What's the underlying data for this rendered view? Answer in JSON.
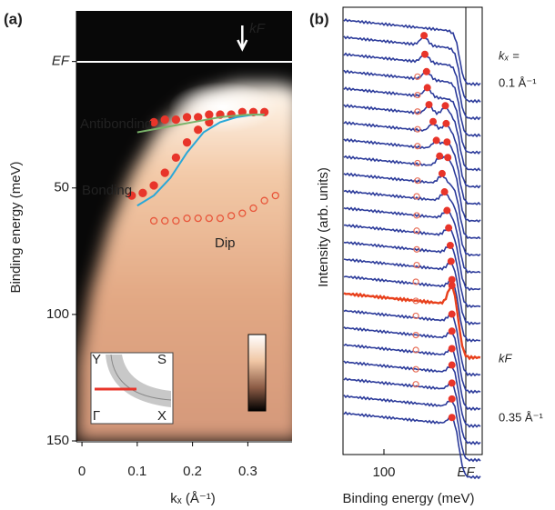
{
  "chart_data": [
    {
      "type": "scatter",
      "title": "(a)",
      "x_label": "kₓ (Å⁻¹)",
      "y_label": "Binding energy (meV)",
      "xlim": [
        -0.01,
        0.38
      ],
      "ylim": [
        -20,
        150
      ],
      "xticks": [
        0,
        0.1,
        0.2,
        0.3
      ],
      "yticks": [
        {
          "value": 0,
          "label": "EF"
        },
        50,
        100,
        150
      ],
      "annotations": [
        {
          "text": "kF",
          "x": 0.29
        }
      ],
      "inset_labels": [
        "Y",
        "S",
        "Γ",
        "X"
      ],
      "series": [
        {
          "name": "Antibonding",
          "marker": "filled",
          "color": "#e8352a",
          "x": [
            0.13,
            0.15,
            0.17,
            0.19,
            0.21,
            0.23,
            0.25,
            0.27,
            0.29,
            0.31,
            0.33
          ],
          "values": [
            24,
            23,
            23,
            22,
            22,
            21,
            21,
            21,
            20,
            20,
            20
          ]
        },
        {
          "name": "Bonding",
          "marker": "filled",
          "color": "#e8352a",
          "x": [
            0.09,
            0.11,
            0.13,
            0.15,
            0.17,
            0.19,
            0.21,
            0.23
          ],
          "values": [
            53,
            52,
            49,
            44,
            38,
            32,
            27,
            24
          ]
        },
        {
          "name": "Dip",
          "marker": "open",
          "color": "#e8553a",
          "x": [
            0.13,
            0.15,
            0.17,
            0.19,
            0.21,
            0.23,
            0.25,
            0.27,
            0.29,
            0.31,
            0.33,
            0.35
          ],
          "values": [
            63,
            63,
            63,
            62,
            62,
            62,
            62,
            61,
            60,
            58,
            55,
            53
          ]
        },
        {
          "marker": "line",
          "color": "#29a8d8",
          "x": [
            0.1,
            0.13,
            0.16,
            0.19,
            0.22,
            0.25,
            0.28,
            0.31,
            0.33
          ],
          "values": [
            57,
            53,
            46,
            36,
            28,
            24,
            22,
            21,
            21
          ]
        },
        {
          "marker": "line",
          "color": "#7ab36a",
          "x": [
            0.1,
            0.15,
            0.2,
            0.25,
            0.3,
            0.33
          ],
          "values": [
            28,
            26,
            24,
            22,
            21,
            21
          ]
        }
      ]
    },
    {
      "type": "stack",
      "title": "(b)",
      "x_label": "Binding energy (meV)",
      "y_label": "Intensity (arb. units)",
      "xlim": [
        150,
        -20
      ],
      "xticks": [
        100,
        {
          "value": 0,
          "label": "EF"
        }
      ],
      "annotations": [
        "kₓ =",
        "0.1 Å⁻¹",
        "kF",
        "0.35 Å⁻¹"
      ],
      "curve_color": "#2b3a9a",
      "highlight_color": "#e8401c",
      "highlight": 16,
      "series": [
        {
          "marker": "filled",
          "color": "#e8352a",
          "values": [
            null,
            51,
            50,
            48,
            47,
            45,
            40,
            36,
            32,
            29,
            26,
            23,
            21,
            19,
            18,
            17,
            17,
            17,
            17,
            17,
            17,
            17,
            17,
            17
          ]
        },
        {
          "marker": "filled",
          "color": "#e8352a",
          "values": [
            null,
            null,
            null,
            null,
            null,
            25,
            24,
            23,
            22,
            null,
            null,
            null,
            null,
            null,
            null,
            null,
            null,
            null,
            null,
            null,
            null,
            null,
            null,
            null
          ]
        },
        {
          "marker": "open",
          "color": "#e8705a",
          "values": [
            null,
            null,
            null,
            59,
            59,
            59,
            59,
            59,
            59,
            59,
            60,
            60,
            60,
            60,
            60,
            61,
            61,
            61,
            61,
            61,
            61,
            61,
            null,
            null
          ]
        }
      ]
    }
  ]
}
